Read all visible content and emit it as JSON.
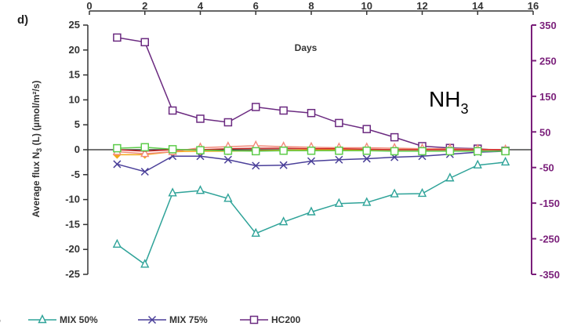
{
  "chart_data": {
    "type": "line",
    "panel_label": "d)",
    "xlabel": "Days",
    "ylabel_prefix": "Average flux N",
    "ylabel_sub": "3",
    "ylabel_suffix": " (L) (µmol/m²/s)",
    "species_main": "NH",
    "species_sub": "3",
    "xlim": [
      0,
      16
    ],
    "x_ticks": [
      "0",
      "2",
      "4",
      "6",
      "8",
      "10",
      "12",
      "14",
      "16"
    ],
    "ylim": [
      -25,
      25
    ],
    "y_ticks": [
      "25",
      "20",
      "15",
      "10",
      "5",
      "0",
      "-5",
      "-10",
      "-15",
      "-20",
      "-25"
    ],
    "y2lim": [
      -350,
      350
    ],
    "y2_ticks": [
      "350",
      "250",
      "150",
      "50",
      "-50",
      "-150",
      "-250",
      "-350"
    ],
    "x": [
      1,
      2,
      3,
      4,
      5,
      6,
      7,
      8,
      9,
      10,
      11,
      12,
      13,
      14,
      15
    ],
    "series": [
      {
        "name": "MIX 50%",
        "axis": "left",
        "color": "#2fa399",
        "marker": "triangle",
        "values": [
          -19,
          -23,
          -8.7,
          -8.2,
          -9.8,
          -16.8,
          -14.5,
          -12.5,
          -10.8,
          -10.6,
          -8.9,
          -8.8,
          -5.7,
          -3.1,
          -2.5
        ]
      },
      {
        "name": "MIX 75%",
        "axis": "left",
        "color": "#4a3f99",
        "marker": "x",
        "values": [
          -2.9,
          -4.4,
          -1.3,
          -1.3,
          -2.0,
          -3.2,
          -3.1,
          -2.3,
          -2.0,
          -1.8,
          -1.5,
          -1.3,
          -0.9,
          -0.5,
          -0.3
        ]
      },
      {
        "name": "HC200",
        "axis": "right",
        "color": "#6b2a80",
        "marker": "square",
        "values": [
          315,
          302,
          110,
          87,
          77,
          120,
          110,
          103,
          75,
          58,
          35,
          10,
          5,
          3,
          -3
        ]
      },
      {
        "name": "",
        "axis": "left",
        "color": "#f2a818",
        "marker": "diamond",
        "values": [
          -1.0,
          -1.0,
          -0.4,
          -0.3,
          -0.3,
          -0.2,
          -0.1,
          0.0,
          0.0,
          0.0,
          0.0,
          0.0,
          0.0,
          0.0,
          0.0
        ]
      },
      {
        "name": "",
        "axis": "left",
        "color": "#f28a7a",
        "marker": "triangle",
        "values": [
          -0.4,
          -0.8,
          -0.4,
          0.4,
          0.6,
          0.8,
          0.6,
          0.5,
          0.4,
          0.4,
          0.3,
          0.2,
          0.2,
          0.1,
          0.0
        ]
      },
      {
        "name": "",
        "axis": "left",
        "color": "#cc2a2a",
        "marker": "none",
        "values": [
          0.0,
          -0.3,
          0.0,
          0.0,
          0.2,
          0.3,
          0.3,
          0.2,
          0.2,
          0.1,
          0.0,
          0.0,
          0.0,
          0.0,
          0.0
        ]
      },
      {
        "name": "",
        "axis": "left",
        "color": "#5ccc4a",
        "marker": "square",
        "values": [
          0.3,
          0.5,
          0.1,
          -0.1,
          -0.2,
          -0.3,
          -0.2,
          -0.2,
          -0.2,
          -0.2,
          -0.3,
          -0.3,
          -0.3,
          -0.3,
          -0.3
        ]
      }
    ],
    "legend": [
      {
        "label": "%",
        "color": "#333333",
        "marker": "none"
      },
      {
        "label": "MIX 50%",
        "color": "#2fa399",
        "marker": "triangle"
      },
      {
        "label": "MIX 75%",
        "color": "#4a3f99",
        "marker": "x"
      },
      {
        "label": "HC200",
        "color": "#6b2a80",
        "marker": "square"
      }
    ],
    "legend_position": "bottom",
    "grid": false,
    "axis_color_left": "#333333",
    "axis_color_right": "#7a1f7a"
  }
}
